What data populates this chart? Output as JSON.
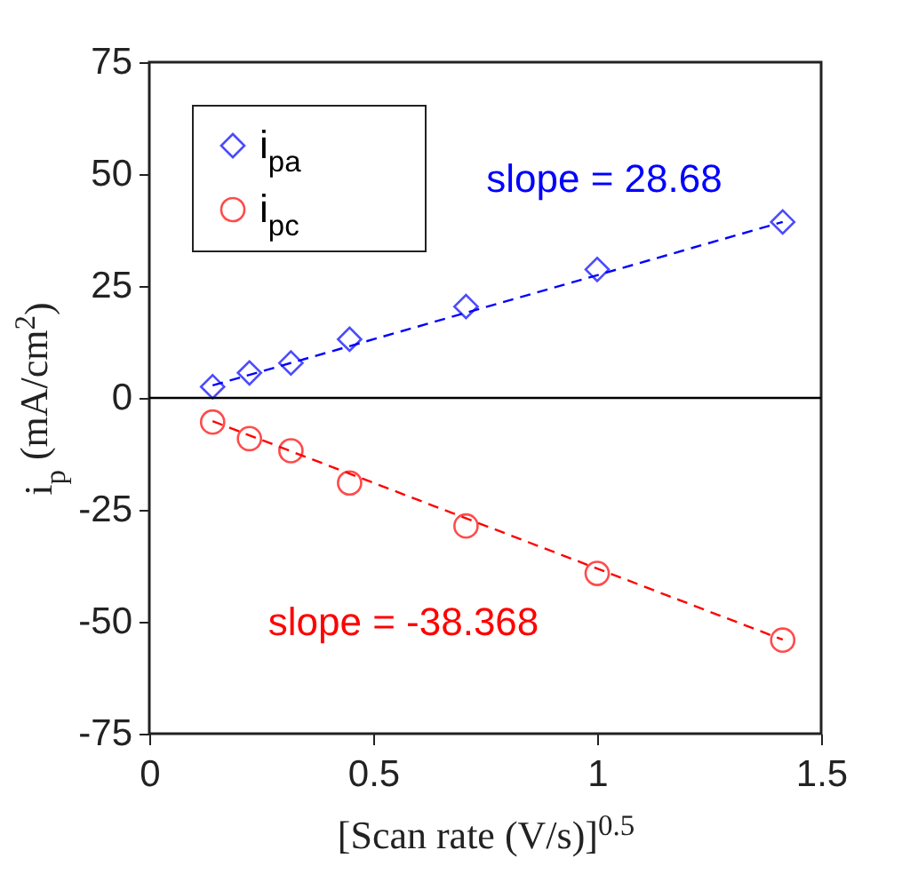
{
  "chart_data": {
    "type": "scatter",
    "xlabel": "[Scan rate (V/s)]$^{0.5}$",
    "ylabel": "i$_{p}$ (mA/cm$^{2}$)",
    "xlim": [
      0,
      1.5
    ],
    "xticks": [
      0,
      0.5,
      1,
      1.5
    ],
    "ylim": [
      -75,
      75
    ],
    "yticks": [
      -75,
      -50,
      -25,
      0,
      25,
      50,
      75
    ],
    "grid": false,
    "legend": "top left",
    "series": [
      {
        "name": "i$_{pa}$",
        "marker": "diamond",
        "color": "#0000ff",
        "x": [
          0.1414,
          0.2236,
          0.3162,
          0.4472,
          0.7071,
          1,
          1.4142
        ],
        "values": [
          2.5,
          5.6,
          7.8,
          13.1,
          20.4,
          28.7,
          39.3
        ]
      },
      {
        "name": "i$_{pc}$",
        "marker": "circle",
        "color": "#ff0000",
        "x": [
          0.1414,
          0.2236,
          0.3162,
          0.4472,
          0.7071,
          1,
          1.4142
        ],
        "values": [
          -5.4,
          -9.1,
          -11.8,
          -19,
          -28.6,
          -39.2,
          -54.1
        ]
      },
      {
        "type": "line",
        "line_style": "dashed",
        "color": "#0000ff",
        "x": [
          0.1414,
          1.4142
        ],
        "values": [
          2.8,
          39.3
        ]
      },
      {
        "type": "line",
        "line_style": "dashed",
        "color": "#ff0000",
        "x": [
          0.1414,
          1.4142
        ],
        "values": [
          -5.2,
          -54
        ]
      }
    ],
    "ref_lines": [
      {
        "axis": "y",
        "value": 0,
        "color": "#000000",
        "line_style": "solid"
      }
    ],
    "annotations": [
      "slope = 28.68",
      "slope = -38.368"
    ]
  }
}
